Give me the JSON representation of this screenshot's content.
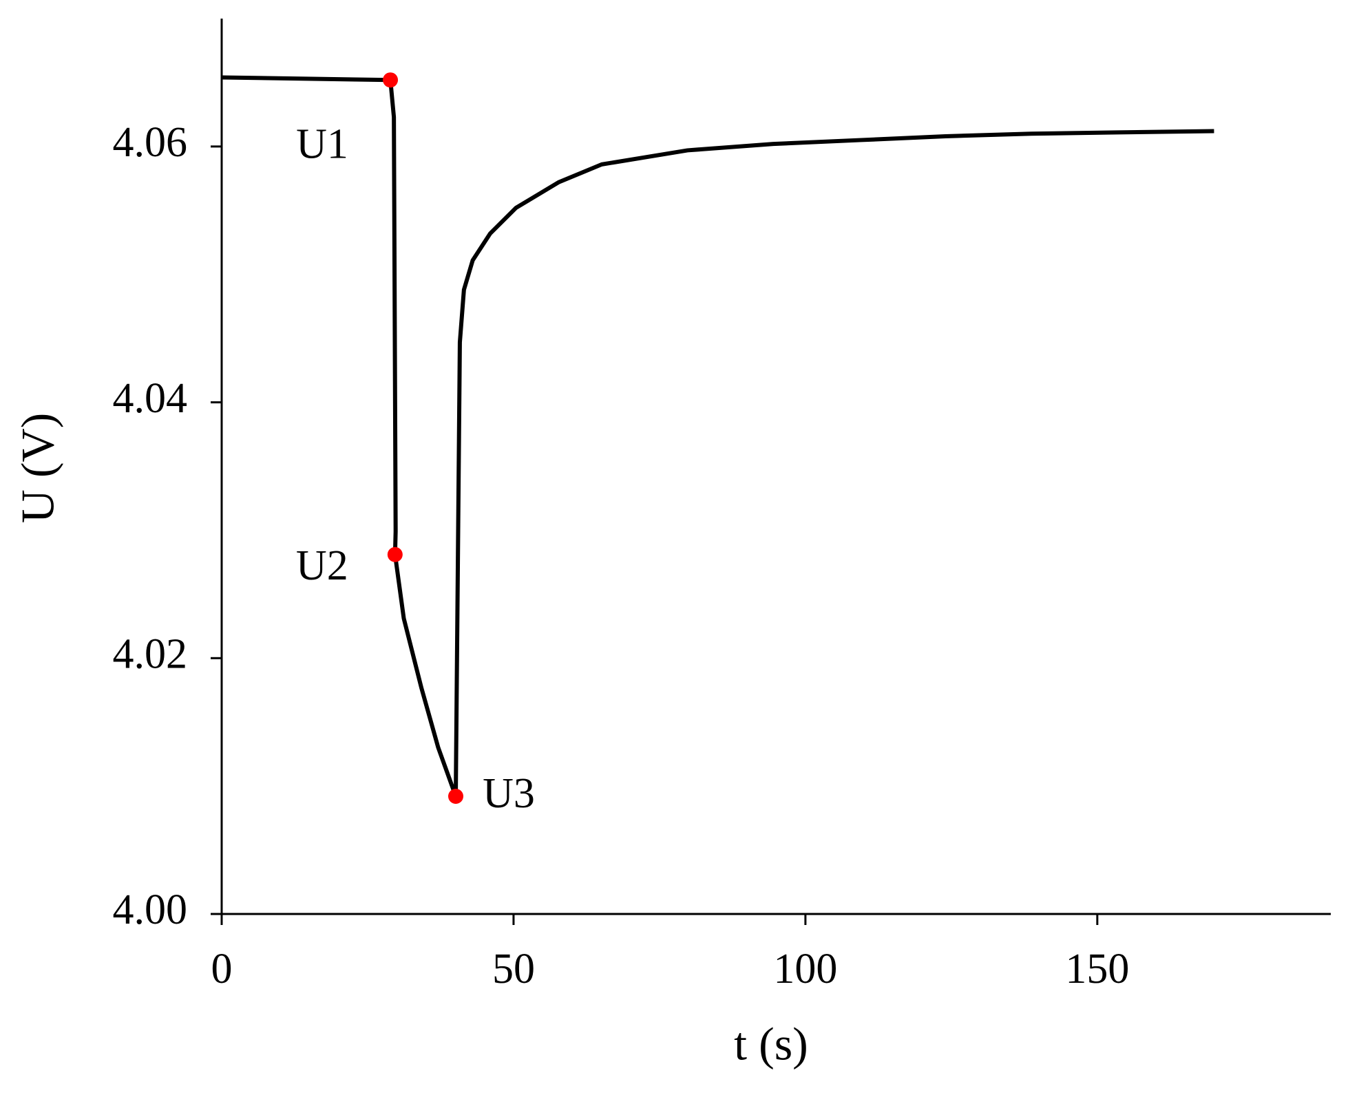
{
  "chart_data": {
    "type": "line",
    "x_label": "t (s)",
    "y_label": "U (V)",
    "xlim": [
      0,
      190
    ],
    "xticks": [
      0,
      50,
      100,
      150
    ],
    "ylim": [
      4.0,
      4.07
    ],
    "yticks": [
      {
        "value": 4,
        "label": "4.00"
      },
      4.02,
      4.04,
      4.06
    ],
    "series": [
      {
        "color": "#000000",
        "x": [
          0,
          28.9,
          29.5,
          29.8,
          29.7,
          31.2,
          34.2,
          37.1,
          40.1,
          40.8,
          41.5,
          43.0,
          46.0,
          50.4,
          57.7,
          65.1,
          79.8,
          94.5,
          109.3,
          124,
          138.7,
          153.5,
          170
        ],
        "values": [
          4.0654,
          4.0652,
          4.0623,
          4.0299,
          4.0281,
          4.0231,
          4.0177,
          4.013,
          4.0092,
          4.0447,
          4.0488,
          4.0511,
          4.0532,
          4.0552,
          4.0572,
          4.0586,
          4.0597,
          4.0602,
          4.0605,
          4.0608,
          4.061,
          4.0611,
          4.0612
        ]
      },
      {
        "color": "#ff0000",
        "markers": true,
        "x": [
          28.9,
          29.7,
          40.1
        ],
        "values": [
          4.0652,
          4.0281,
          4.0092
        ]
      }
    ],
    "annotations": [
      "U1",
      "U2",
      "U3"
    ]
  }
}
